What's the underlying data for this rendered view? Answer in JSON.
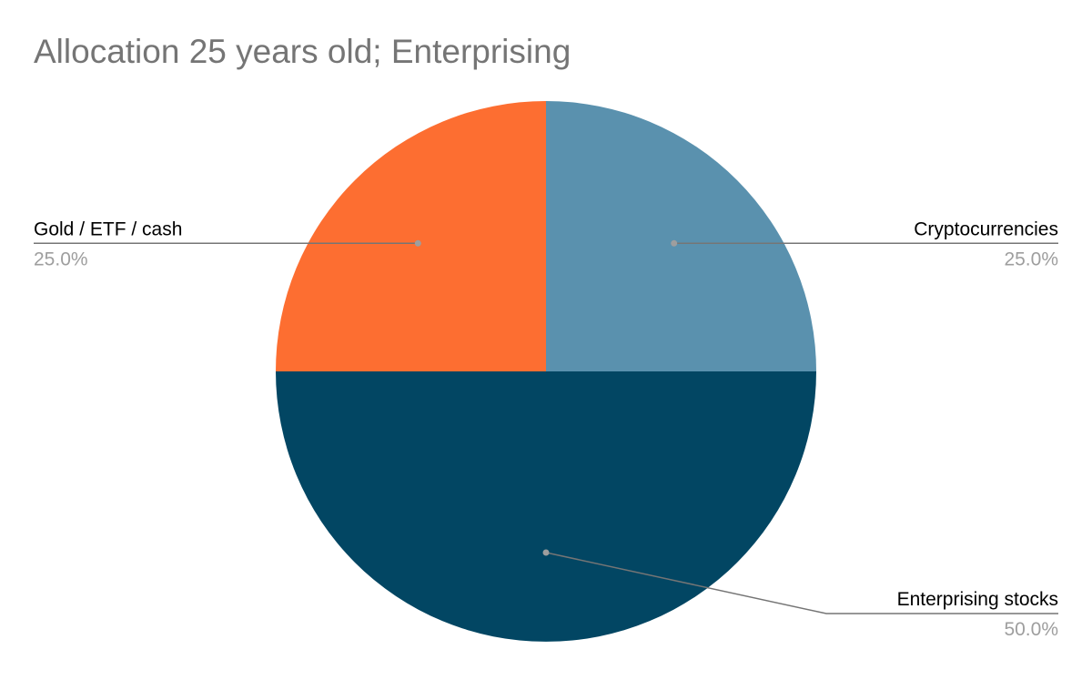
{
  "chart_data": {
    "type": "pie",
    "title": "Allocation 25 years old; Enterprising",
    "slices": [
      {
        "label": "Cryptocurrencies",
        "value": 25.0,
        "percent_label": "25.0%",
        "color": "#5a91ae"
      },
      {
        "label": "Enterprising stocks",
        "value": 50.0,
        "percent_label": "50.0%",
        "color": "#024663"
      },
      {
        "label": "Gold / ETF / cash",
        "value": 25.0,
        "percent_label": "25.0%",
        "color": "#fd6e31"
      }
    ],
    "legend": "none",
    "data_labels": "outside with leader lines",
    "colors": {
      "title": "#757575",
      "label_text": "#000000",
      "percent_text": "#9e9e9e",
      "leader_line": "#757575",
      "leader_dot": "#9e9e9e",
      "background": "#ffffff"
    }
  }
}
